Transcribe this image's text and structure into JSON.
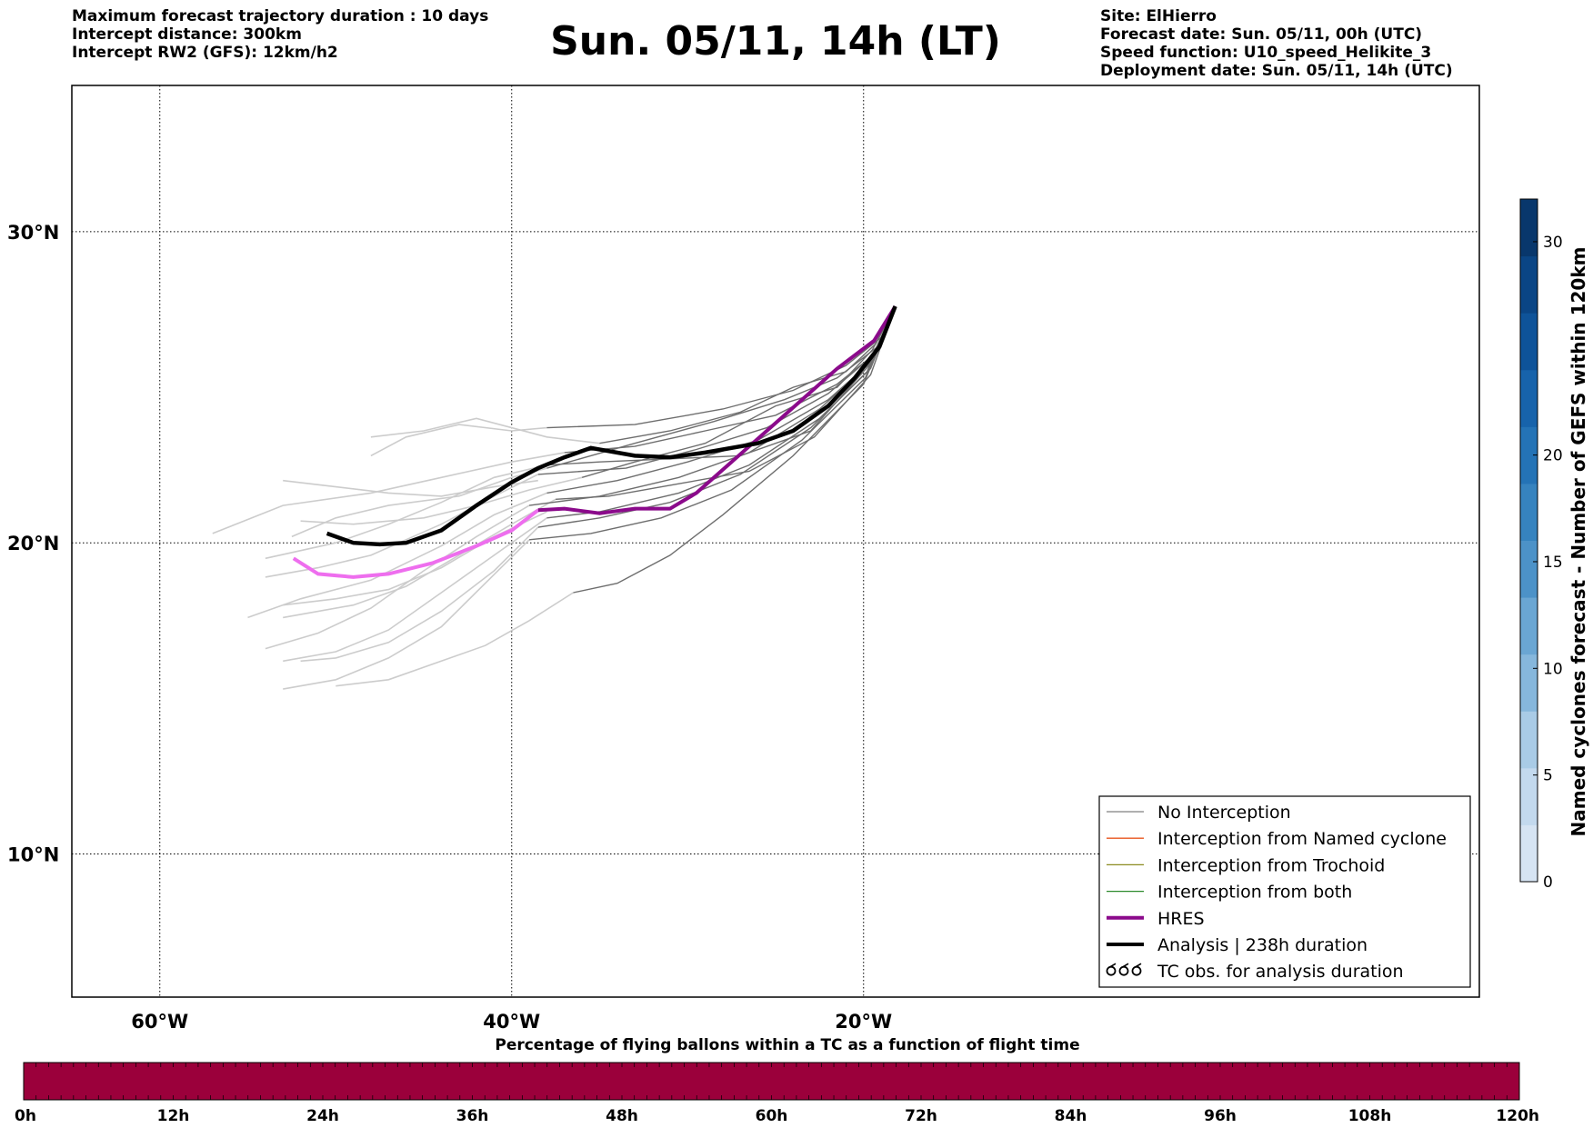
{
  "header": {
    "left_lines": [
      "Maximum forecast trajectory duration : 10 days",
      "Intercept distance: 300km",
      "Intercept RW2 (GFS):  12km/h2"
    ],
    "title": "Sun. 05/11, 14h (LT)",
    "right_lines": [
      "Site: ElHierro",
      "Forecast date: Sun. 05/11, 00h (UTC)",
      "Speed function: U10_speed_Helikite_3",
      "Deployment date: Sun. 05/11, 14h (UTC)"
    ]
  },
  "map": {
    "lon_range": [
      -65,
      15
    ],
    "lat_range": [
      5.4,
      34.7
    ],
    "lon_ticks": [
      {
        "value": -60,
        "label": "60°W"
      },
      {
        "value": -40,
        "label": "40°W"
      },
      {
        "value": -20,
        "label": "20°W"
      }
    ],
    "lat_ticks": [
      {
        "value": 30,
        "label": "30°N"
      },
      {
        "value": 20,
        "label": "20°N"
      },
      {
        "value": 10,
        "label": "10°N"
      }
    ],
    "grid": "dotted",
    "colors": {
      "ensemble_no_interception_dark": "#6e6e6e",
      "ensemble_no_interception_light": "#cccccc",
      "hres": "#8b0a8b",
      "hres_light": "#ee6eee",
      "analysis": "#000000"
    }
  },
  "legend": {
    "placement": "lower-right",
    "items": [
      {
        "label": "No Interception",
        "color": "#808080",
        "kind": "thin-line"
      },
      {
        "label": "Interception from Named cyclone",
        "color": "#e8541d",
        "kind": "thin-line"
      },
      {
        "label": "Interception from Trochoid",
        "color": "#8a8a1e",
        "kind": "thin-line"
      },
      {
        "label": "Interception from both",
        "color": "#2c8a2c",
        "kind": "thin-line"
      },
      {
        "label": "HRES",
        "color": "#8b0a8b",
        "kind": "thick-line"
      },
      {
        "label": "Analysis | 238h duration",
        "color": "#000000",
        "kind": "thick-line"
      },
      {
        "label": "TC obs. for analysis duration",
        "color": "#000000",
        "kind": "tc-symbol"
      }
    ]
  },
  "colorbar": {
    "title": "Named cyclones forecast - Number of GEFS within 120km",
    "range": [
      0,
      32
    ],
    "tick_values": [
      0,
      5,
      10,
      15,
      20,
      30
    ],
    "colors": [
      "#d6e4f3",
      "#c3d9ee",
      "#a9cbe6",
      "#86b7dc",
      "#6aa6d3",
      "#4c92c8",
      "#3683bf",
      "#2473b6",
      "#1763ab",
      "#0e5399",
      "#0a4585",
      "#08376c"
    ]
  },
  "percentage_bar": {
    "title": "Percentage of flying ballons within a TC as a function of flight time",
    "color": "#9b003b",
    "ticks": [
      "0h",
      "12h",
      "24h",
      "36h",
      "48h",
      "60h",
      "72h",
      "84h",
      "96h",
      "108h",
      "120h"
    ]
  }
}
